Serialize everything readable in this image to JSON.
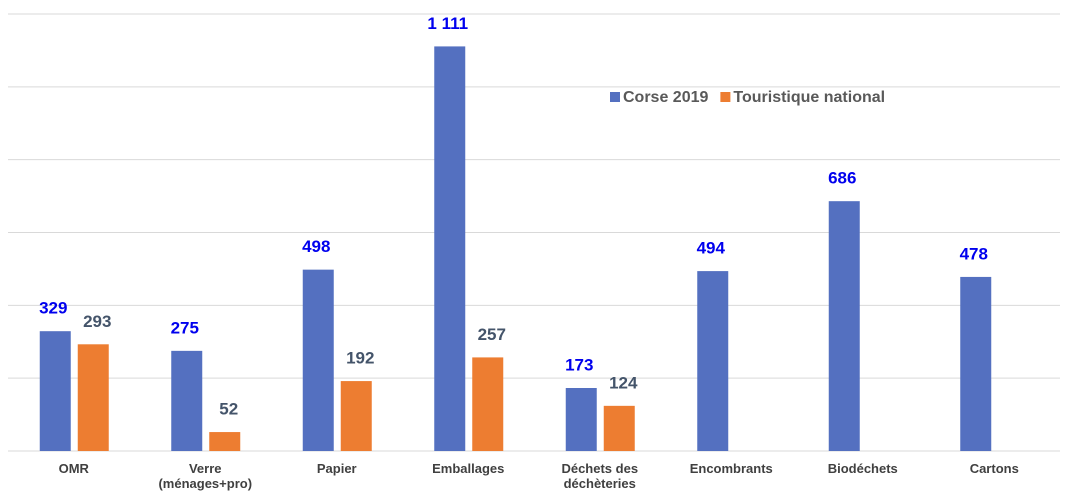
{
  "chart_data": {
    "type": "bar",
    "categories": [
      "OMR",
      "Verre (ménages+pro)",
      "Papier",
      "Emballages",
      "Déchets des déchèteries",
      "Encombrants",
      "Biodéchets",
      "Cartons"
    ],
    "series": [
      {
        "name": "Corse 2019",
        "color": "#5470c0",
        "label_color": "#0000ee",
        "values": [
          329,
          275,
          498,
          1111,
          173,
          494,
          686,
          478
        ],
        "value_labels": [
          "329",
          "275",
          "498",
          "1 111",
          "173",
          "494",
          "686",
          "478"
        ]
      },
      {
        "name": "Touristique national",
        "color": "#ed7d31",
        "label_color": "#44546a",
        "values": [
          293,
          52,
          192,
          257,
          124,
          null,
          null,
          null
        ]
      }
    ],
    "ylim": [
      0,
      1200
    ],
    "yticks": [
      0,
      200,
      400,
      600,
      800,
      1000,
      1200
    ],
    "grid": true,
    "legend": "top-right"
  }
}
